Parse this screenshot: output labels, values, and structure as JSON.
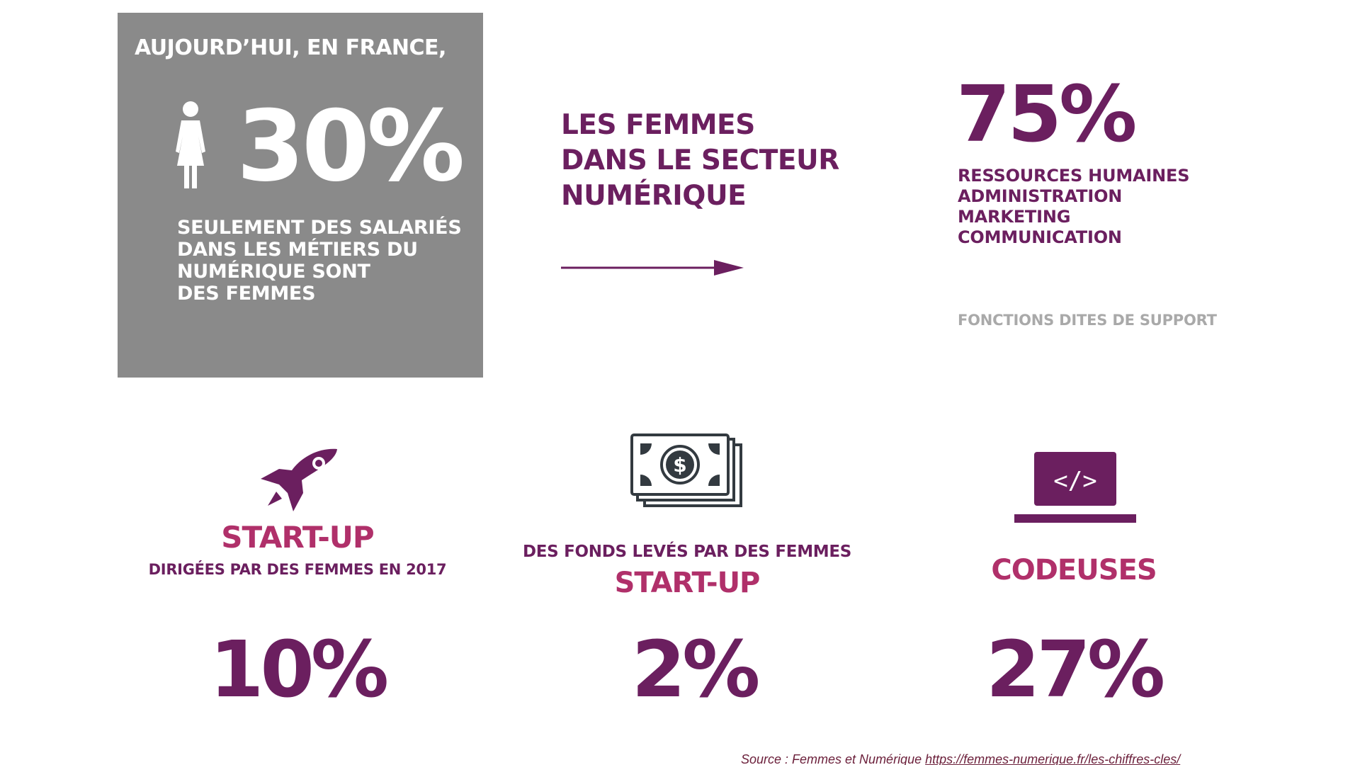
{
  "grey_box": {
    "heading": "AUJOURD’HUI, EN FRANCE,",
    "percent": "30%",
    "description_lines": [
      "SEULEMENT DES SALARIÉS",
      "DANS LES MÉTIERS DU",
      "NUMÉRIQUE SONT",
      "DES FEMMES"
    ],
    "icon": "woman-icon"
  },
  "center": {
    "heading_lines": [
      "LES FEMMES",
      "DANS LE SECTEUR",
      "NUMÉRIQUE"
    ],
    "icon": "arrow-right-icon"
  },
  "right": {
    "percent": "75%",
    "list": [
      "RESSOURCES HUMAINES",
      "ADMINISTRATION",
      "MARKETING",
      "COMMUNICATION"
    ],
    "support_label": "FONCTIONS DITES DE SUPPORT"
  },
  "columns": [
    {
      "icon": "rocket-icon",
      "title": "START-UP",
      "subtitle": "DIRIGÉES PAR DES FEMMES EN 2017",
      "percent": "10%"
    },
    {
      "icon": "money-icon",
      "subtitle": "DES FONDS LEVÉS PAR DES FEMMES",
      "title": "START-UP",
      "percent": "2%"
    },
    {
      "icon": "laptop-code-icon",
      "title": "CODEUSES",
      "percent": "27%"
    }
  ],
  "source": {
    "prefix": "Source : Femmes et Numérique ",
    "link_text": "https://femmes-numerique.fr/les-chiffres-cles/"
  },
  "colors": {
    "grey_box": "#8a8a8a",
    "purple": "#6b1f5f",
    "pink": "#b0306a",
    "light_grey_text": "#a9a9a9",
    "icon_dark": "#333a40"
  }
}
